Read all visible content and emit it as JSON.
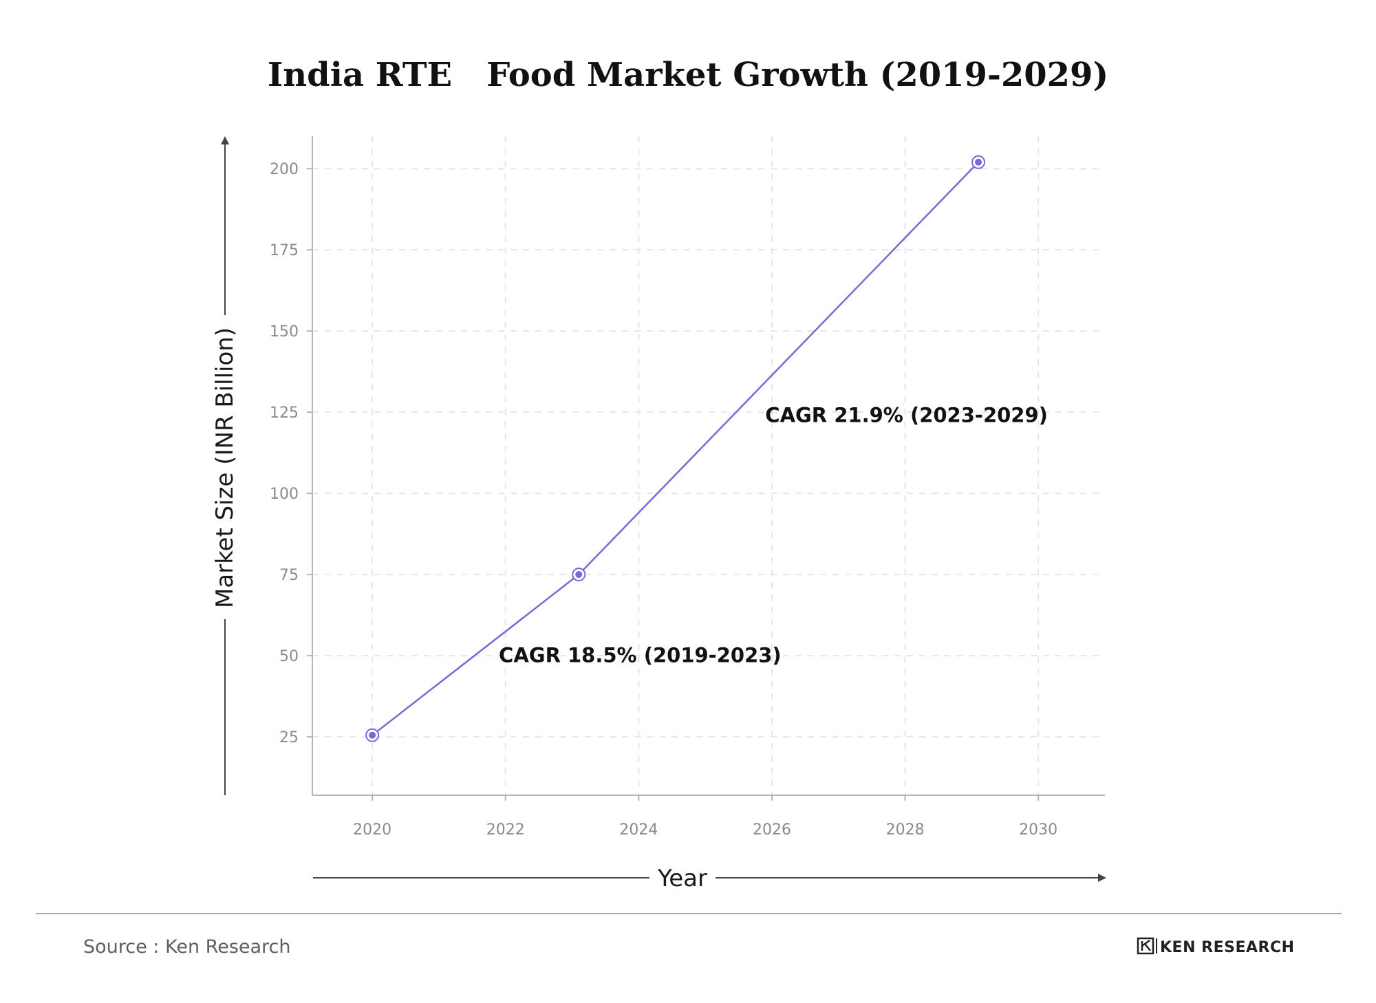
{
  "chart_data": {
    "type": "line",
    "title": "India RTE   Food Market Growth (2019-2029)",
    "xlabel": "Year",
    "ylabel": "Market Size (INR Billion)",
    "xlim": [
      2019.1,
      2031
    ],
    "ylim": [
      7,
      210
    ],
    "x_ticks": [
      2020,
      2022,
      2024,
      2026,
      2028,
      2030
    ],
    "y_ticks": [
      25,
      50,
      75,
      100,
      125,
      150,
      175,
      200
    ],
    "grid": true,
    "series": [
      {
        "x": [
          2020,
          2023.1,
          2029.1
        ],
        "y": [
          25.5,
          75,
          202
        ],
        "color": "#7b68d8"
      }
    ],
    "annotations": [
      {
        "text": "CAGR 18.5% (2019-2023)",
        "x": 2021.9,
        "y": 48
      },
      {
        "text": "CAGR 21.9% (2023-2029)",
        "x": 2025.9,
        "y": 122
      }
    ]
  },
  "footer": {
    "source": "Source : Ken Research",
    "logo_text": "KEN RESEARCH"
  },
  "colors": {
    "line": "#7b68d8",
    "grid": "#e6e6e6",
    "axis": "#b5b5b5",
    "arrow": "#444444"
  },
  "icons": {
    "logo": "ken-research-logo-icon"
  }
}
